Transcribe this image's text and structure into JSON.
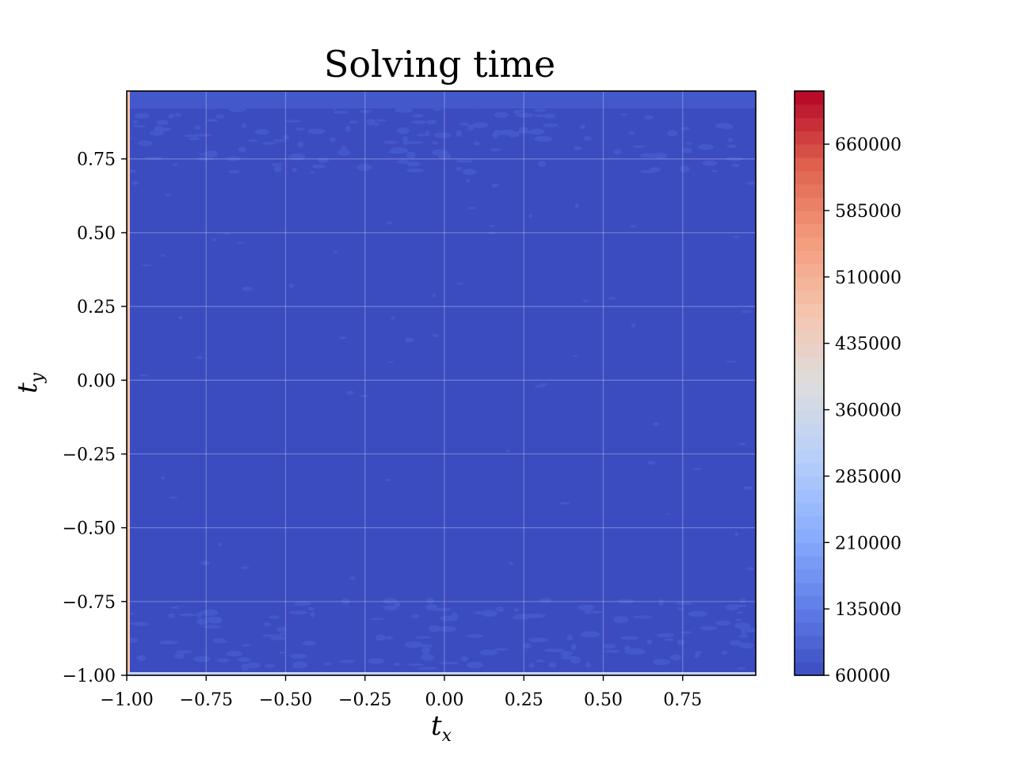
{
  "chart_data": {
    "type": "heatmap",
    "title": "Solving time",
    "xlabel": {
      "base": "t",
      "sub": "x"
    },
    "ylabel": {
      "base": "t",
      "sub": "y"
    },
    "xlim": [
      -1.0,
      0.98
    ],
    "ylim": [
      -1.0,
      0.98
    ],
    "x_ticks": [
      -1.0,
      -0.75,
      -0.5,
      -0.25,
      0.0,
      0.25,
      0.5,
      0.75
    ],
    "x_tick_labels": [
      "−1.00",
      "−0.75",
      "−0.50",
      "−0.25",
      "0.00",
      "0.25",
      "0.50",
      "0.75"
    ],
    "y_ticks": [
      -1.0,
      -0.75,
      -0.5,
      -0.25,
      0.0,
      0.25,
      0.5,
      0.75
    ],
    "y_tick_labels": [
      "−1.00",
      "−0.75",
      "−0.50",
      "−0.25",
      "0.00",
      "0.25",
      "0.50",
      "0.75"
    ],
    "grid": true,
    "colormap": "coolwarm",
    "colorbar": {
      "min": 60000,
      "max": 720000,
      "ticks": [
        60000,
        135000,
        210000,
        285000,
        360000,
        435000,
        510000,
        585000,
        660000
      ],
      "tick_labels": [
        "60000",
        "135000",
        "210000",
        "285000",
        "360000",
        "435000",
        "510000",
        "585000",
        "660000"
      ]
    },
    "field_summary": {
      "typical_value": 60000,
      "band_value_top_bottom": 90000,
      "edge_x_min_value": 480000,
      "edge_y_min_value": 330000
    },
    "colors": {
      "field": "#3b4cc0",
      "band": "#4358cb",
      "speckle": "#4a63d3",
      "grid": "#ffffff"
    }
  }
}
